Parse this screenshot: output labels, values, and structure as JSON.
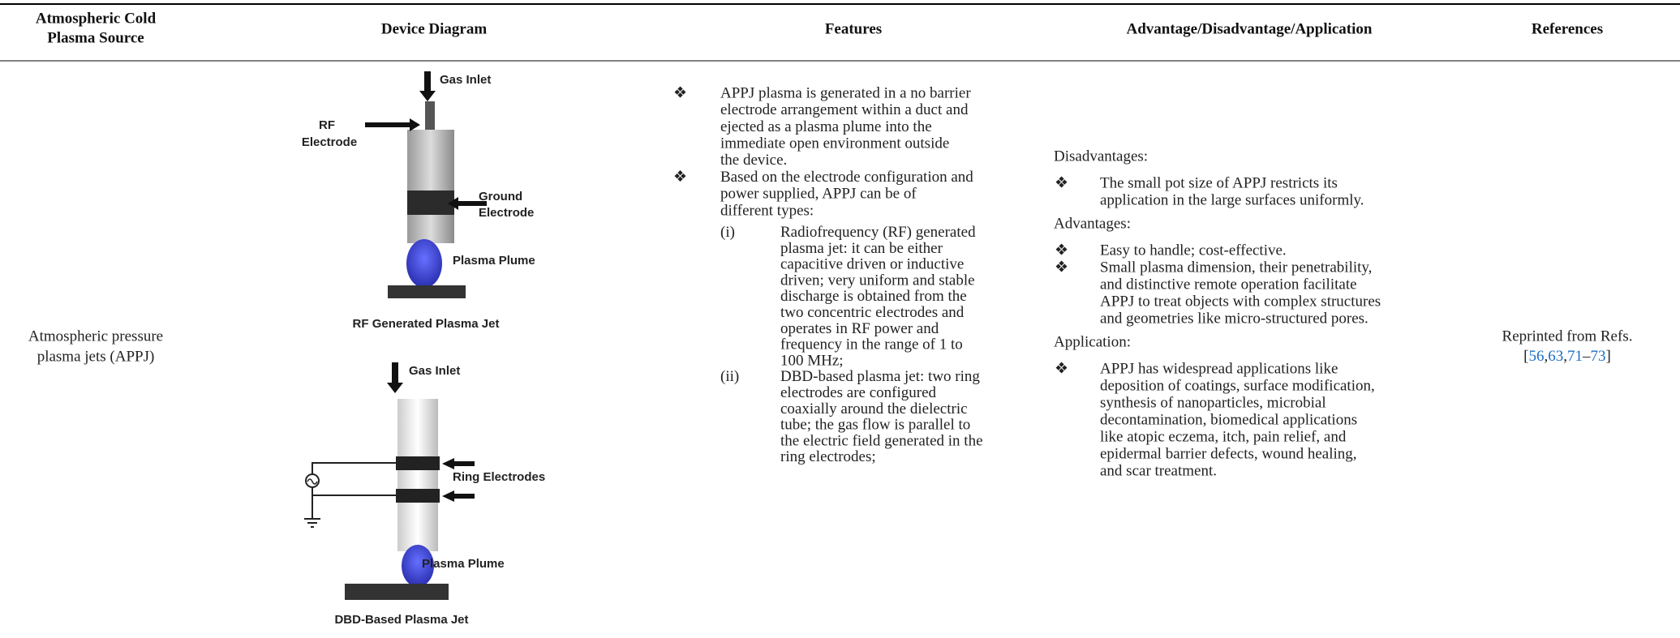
{
  "header": {
    "columns": [
      [
        "Atmospheric Cold",
        "Plasma Source"
      ],
      [
        "Device Diagram"
      ],
      [
        "Features"
      ],
      [
        "Advantage/Disadvantage/Application"
      ],
      [
        "References"
      ]
    ]
  },
  "row": {
    "source": [
      "Atmospheric pressure",
      "plasma jets (APPJ)"
    ],
    "diagram": {
      "rf": {
        "gas_inlet": "Gas Inlet",
        "electrode": [
          "RF",
          "Electrode"
        ],
        "ground": [
          "Ground",
          "Electrode"
        ],
        "plume": "Plasma Plume",
        "caption": "RF Generated Plasma Jet"
      },
      "dbd": {
        "gas_inlet": "Gas Inlet",
        "rings": "Ring Electrodes",
        "plume": "Plasma Plume",
        "caption": "DBD-Based Plasma Jet"
      }
    },
    "features": {
      "bullet": "❖",
      "items": [
        [
          "APPJ plasma is generated in a no barrier",
          "electrode arrangement within a duct and",
          "ejected as a plasma plume into the",
          "immediate open environment outside",
          "the device."
        ],
        [
          "Based on the electrode configuration and",
          "power supplied, APPJ can be of",
          "different types:"
        ]
      ],
      "subitems": [
        {
          "label": "(i)",
          "lines": [
            "Radiofrequency (RF) generated",
            "plasma jet: it can be either",
            "capacitive driven or inductive",
            "driven; very uniform and stable",
            "discharge is obtained from the",
            "two concentric electrodes and",
            "operates in RF power and",
            "frequency in the range of 1 to",
            "100 MHz;"
          ]
        },
        {
          "label": "(ii)",
          "lines": [
            "DBD-based plasma jet: two ring",
            "electrodes are configured",
            "coaxially around the dielectric",
            "tube; the gas flow is parallel to",
            "the electric field generated in the",
            "ring electrodes;"
          ]
        }
      ]
    },
    "analysis": {
      "sections": [
        {
          "heading": "Disadvantages:",
          "items": [
            [
              "The small pot size of APPJ restricts its",
              "application in the large surfaces uniformly."
            ]
          ]
        },
        {
          "heading": "Advantages:",
          "items": [
            [
              "Easy to handle; cost-effective."
            ],
            [
              "Small plasma dimension, their penetrability,",
              "and distinctive remote operation facilitate",
              "APPJ to treat objects with complex structures",
              "and geometries like micro-structured pores."
            ]
          ]
        },
        {
          "heading": "Application:",
          "items": [
            [
              "APPJ has widespread applications like",
              "deposition of coatings, surface modification,",
              "synthesis of nanoparticles, microbial",
              "decontamination, biomedical applications",
              "like atopic eczema, itch, pain relief, and",
              "epidermal barrier defects, wound healing,",
              "and scar treatment."
            ]
          ]
        }
      ]
    },
    "references": {
      "text": "Reprinted from Refs.",
      "citation": [
        {
          "t": "["
        },
        {
          "t": "56",
          "link": true
        },
        {
          "t": ","
        },
        {
          "t": "63",
          "link": true
        },
        {
          "t": ","
        },
        {
          "t": "71",
          "link": true
        },
        {
          "t": "–"
        },
        {
          "t": "73",
          "link": true
        },
        {
          "t": "]"
        }
      ]
    }
  }
}
